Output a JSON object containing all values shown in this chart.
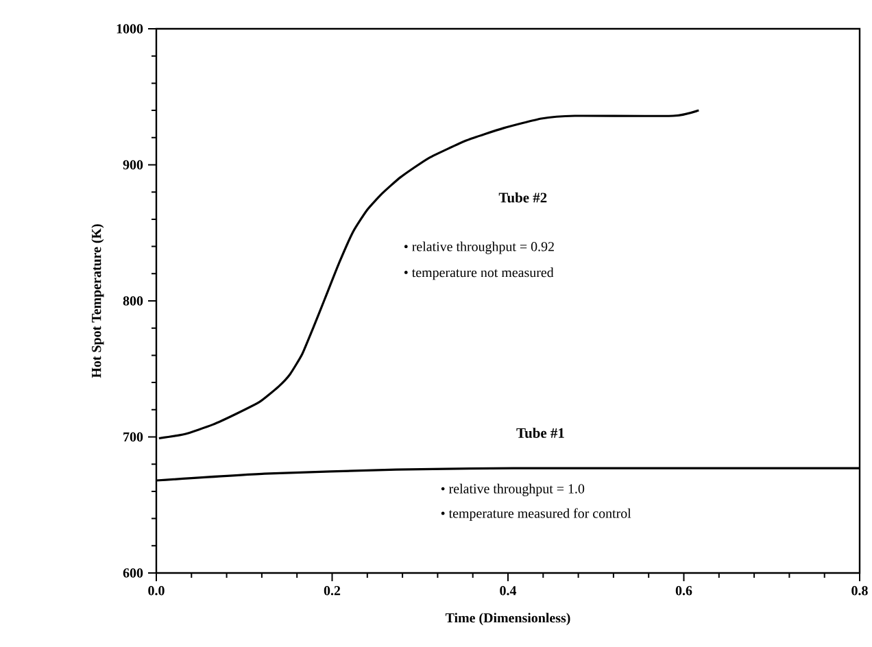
{
  "chart_data": {
    "type": "line",
    "xlabel": "Time (Dimensionless)",
    "ylabel": "Hot Spot Temperature (K)",
    "xlim": [
      0,
      0.8
    ],
    "xticks": [
      {
        "value": 0,
        "label": "0.0"
      },
      0.2,
      0.4,
      0.6,
      0.8
    ],
    "ylim": [
      600,
      1000
    ],
    "yticks": [
      600,
      700,
      800,
      900,
      1000
    ],
    "marker": "none",
    "line_style": "solid",
    "series": [
      {
        "color": "#000000",
        "x": [
          0.003,
          0.032,
          0.064,
          0.091,
          0.118,
          0.139,
          0.152,
          0.166,
          0.179,
          0.192,
          0.208,
          0.224,
          0.24,
          0.257,
          0.278,
          0.31,
          0.353,
          0.395,
          0.438,
          0.476,
          0.588,
          0.617
        ],
        "values": [
          699,
          702,
          709,
          717,
          726,
          737,
          746,
          761,
          781,
          802,
          828,
          851,
          867,
          879,
          891,
          905,
          918,
          927,
          934,
          936,
          936,
          940
        ]
      },
      {
        "color": "#000000",
        "x": [
          0,
          0.123,
          0.273,
          0.406,
          0.8
        ],
        "values": [
          668,
          673,
          676,
          677,
          677
        ]
      }
    ],
    "annotations": [
      "Tube #2",
      "• relative throughput = 0.92",
      "• temperature not measured",
      "Tube #1",
      "• relative throughput = 1.0",
      "• temperature measured for control"
    ]
  }
}
